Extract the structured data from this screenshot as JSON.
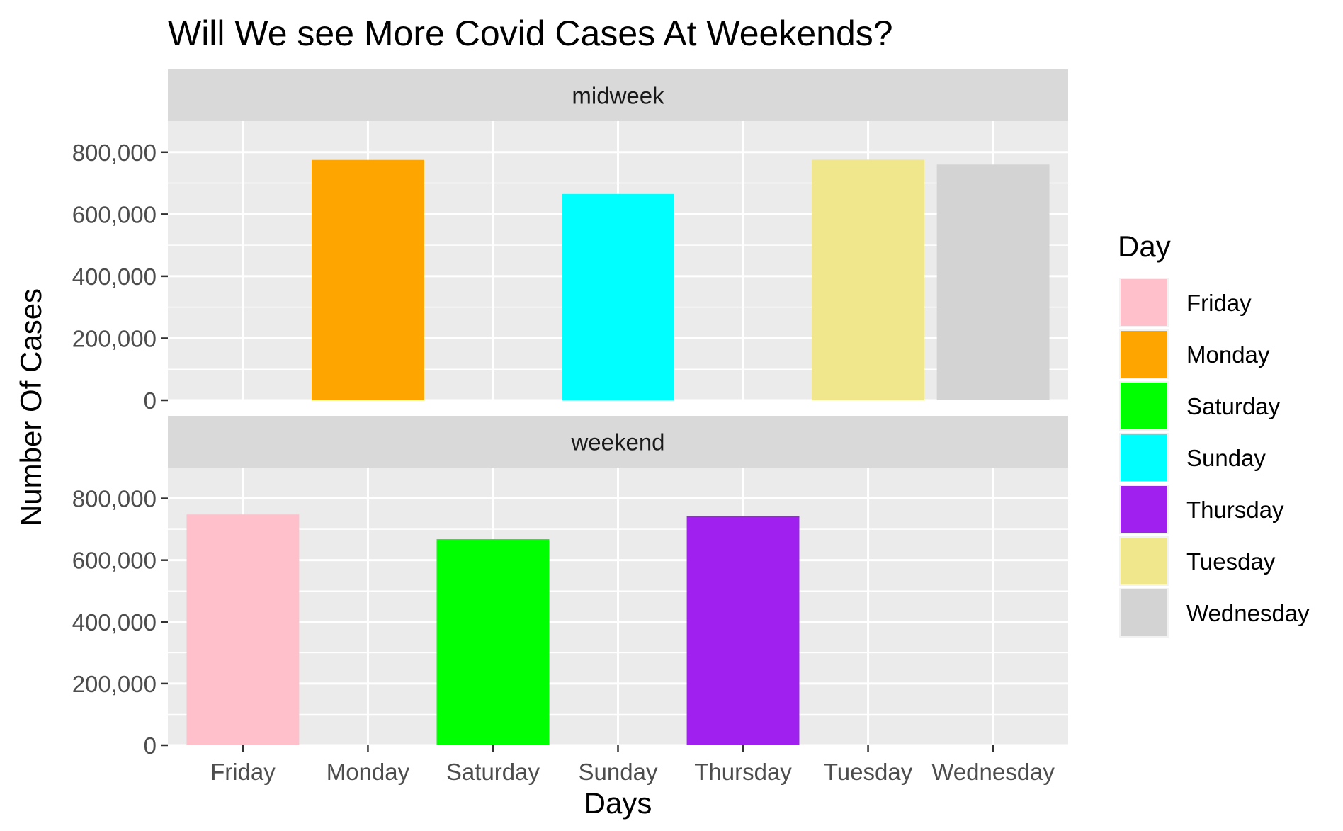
{
  "chart_data": {
    "type": "bar",
    "title": "Will We see More Covid Cases At Weekends?",
    "xlabel": "Days",
    "ylabel": "Number Of Cases",
    "categories": [
      "Friday",
      "Monday",
      "Saturday",
      "Sunday",
      "Thursday",
      "Tuesday",
      "Wednesday"
    ],
    "ylim": [
      0,
      900000
    ],
    "yticks": [
      0,
      200000,
      400000,
      600000,
      800000
    ],
    "ytick_labels": [
      "0",
      "200,000",
      "400,000",
      "600,000",
      "800,000"
    ],
    "grid": true,
    "facets": [
      {
        "name": "midweek",
        "values": [
          null,
          775000,
          null,
          665000,
          null,
          776000,
          760000
        ]
      },
      {
        "name": "weekend",
        "values": [
          748000,
          null,
          668000,
          null,
          742000,
          null,
          null
        ]
      }
    ],
    "legend": {
      "title": "Day",
      "position": "right",
      "entries": [
        {
          "label": "Friday",
          "color": "#FFC0CB"
        },
        {
          "label": "Monday",
          "color": "#FFA500"
        },
        {
          "label": "Saturday",
          "color": "#00FF00"
        },
        {
          "label": "Sunday",
          "color": "#00FFFF"
        },
        {
          "label": "Thursday",
          "color": "#A020F0"
        },
        {
          "label": "Tuesday",
          "color": "#F0E68C"
        },
        {
          "label": "Wednesday",
          "color": "#D3D3D3"
        }
      ]
    },
    "colors": {
      "panel_background": "#EBEBEB",
      "strip_background": "#D9D9D9",
      "grid": "#FFFFFF"
    }
  }
}
